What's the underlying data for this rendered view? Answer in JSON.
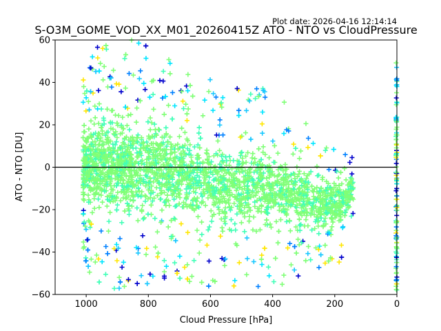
{
  "chart_data": {
    "type": "scatter",
    "title": "S-O3M_GOME_VOD_XX_M01_20260415Z ATO - NTO vs CloudPressure",
    "plot_date": "Plot date: 2026-04-16 12:14:14",
    "xlabel": "Cloud Pressure [hPa]",
    "ylabel": "ATO - NTO [DU]",
    "xlim": [
      1100,
      0
    ],
    "ylim": [
      -60,
      60
    ],
    "x_inverted": true,
    "grid": false,
    "xticks": [
      {
        "value": 1000,
        "label": "1000"
      },
      {
        "value": 800,
        "label": "800"
      },
      {
        "value": 600,
        "label": "600"
      },
      {
        "value": 400,
        "label": "400"
      },
      {
        "value": 200,
        "label": "200"
      },
      {
        "value": 0,
        "label": "0"
      }
    ],
    "yticks": [
      {
        "value": 60,
        "label": "60"
      },
      {
        "value": 40,
        "label": "40"
      },
      {
        "value": 20,
        "label": "20"
      },
      {
        "value": 0,
        "label": "0"
      },
      {
        "value": -20,
        "label": "−20"
      },
      {
        "value": -40,
        "label": "−40"
      },
      {
        "value": -60,
        "label": "−60"
      }
    ],
    "reference_line": {
      "y": 0,
      "color": "#000000"
    },
    "marker": "plus",
    "colors": [
      "#80ff77",
      "#80ff77",
      "#80ff77",
      "#40ffb7",
      "#00e5ff",
      "#18c8ff",
      "#ffe600",
      "#0080ff",
      "#0000cc"
    ],
    "point_density": {
      "description": "Dense cloud of points; envelope of observed ATO-NTO spread per cloud-pressure band",
      "x_min": 140,
      "x_max": 1010,
      "envelope": [
        {
          "x": 1010,
          "lo": -45,
          "hi": 45
        },
        {
          "x": 950,
          "lo": -58,
          "hi": 60
        },
        {
          "x": 850,
          "lo": -58,
          "hi": 60
        },
        {
          "x": 750,
          "lo": -55,
          "hi": 55
        },
        {
          "x": 650,
          "lo": -55,
          "hi": 45
        },
        {
          "x": 550,
          "lo": -58,
          "hi": 40
        },
        {
          "x": 450,
          "lo": -58,
          "hi": 40
        },
        {
          "x": 350,
          "lo": -55,
          "hi": 30
        },
        {
          "x": 250,
          "lo": -50,
          "hi": 15
        },
        {
          "x": 180,
          "lo": -45,
          "hi": 10
        },
        {
          "x": 140,
          "lo": -25,
          "hi": 5
        }
      ],
      "column_at_zero": {
        "x": 0,
        "lo": -58,
        "hi": 50
      }
    }
  }
}
